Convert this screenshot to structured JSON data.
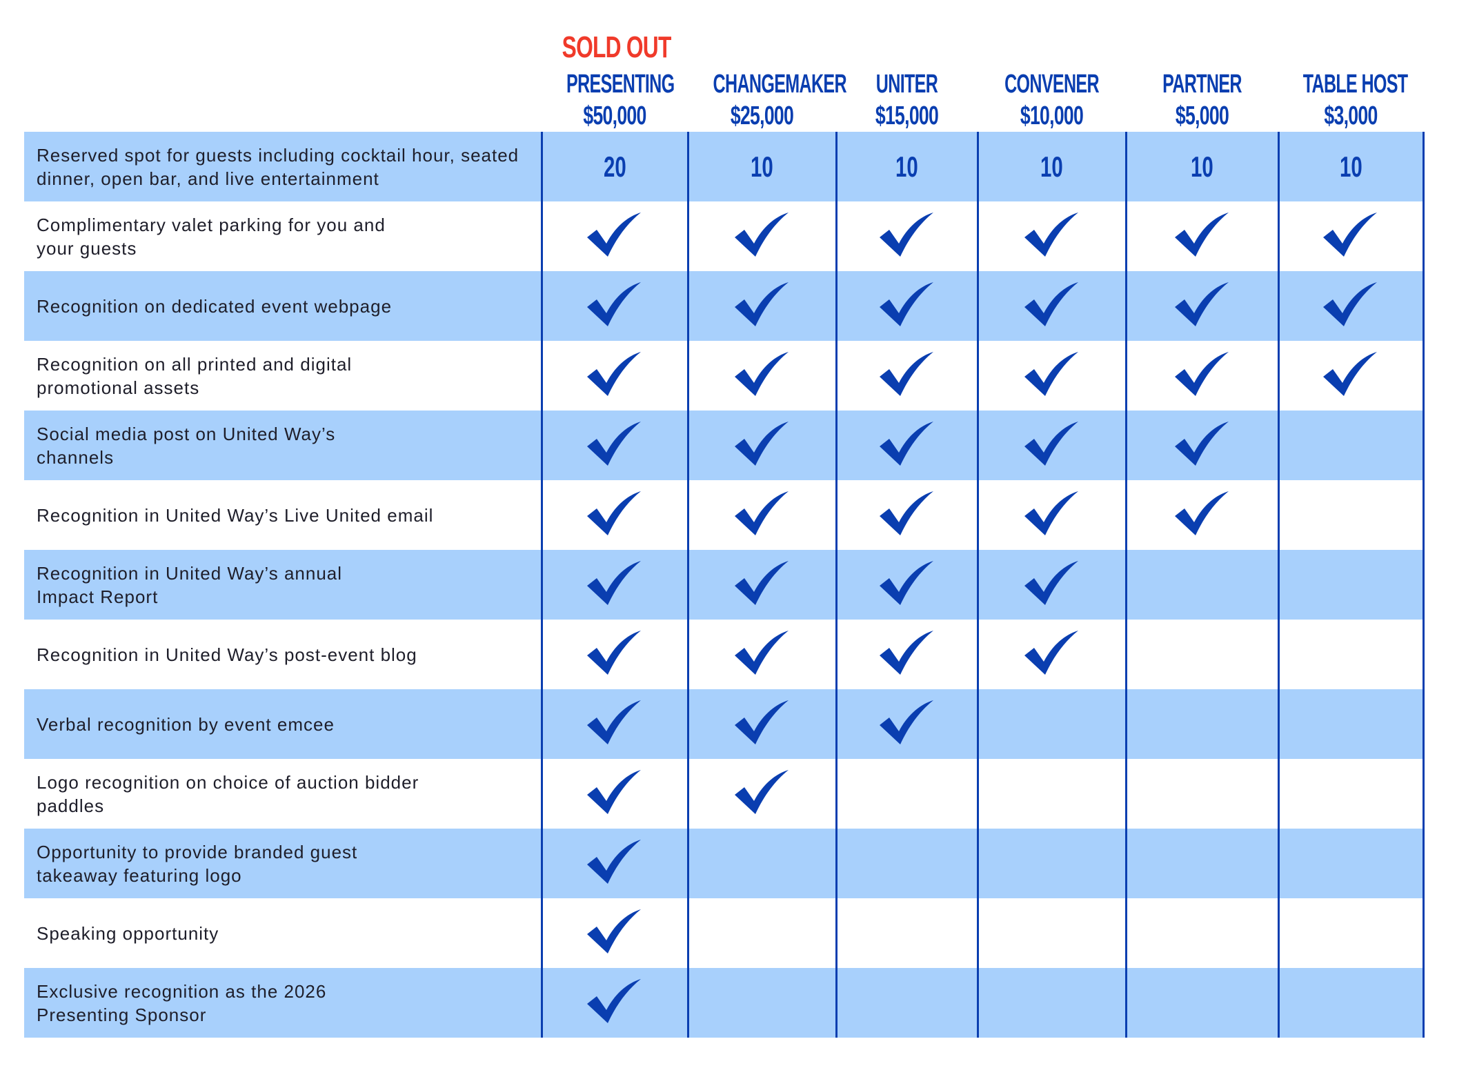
{
  "colors": {
    "accent": "#0a3eb0",
    "row_highlight": "#a8d0fc",
    "sold_out": "#f03a2a"
  },
  "columns": [
    {
      "name": "PRESENTING",
      "price": "$50,000",
      "badge": "SOLD OUT"
    },
    {
      "name": "CHANGEMAKER",
      "price": "$25,000"
    },
    {
      "name": "UNITER",
      "price": "$15,000"
    },
    {
      "name": "CONVENER",
      "price": "$10,000"
    },
    {
      "name": "PARTNER",
      "price": "$5,000"
    },
    {
      "name": "TABLE HOST",
      "price": "$3,000"
    }
  ],
  "rows": [
    {
      "label": "Reserved spot for guests including cocktail hour, seated dinner, open bar, and live entertainment",
      "values": [
        "20",
        "10",
        "10",
        "10",
        "10",
        "10"
      ]
    },
    {
      "label": "Complimentary valet parking for you and your guests",
      "checks": [
        true,
        true,
        true,
        true,
        true,
        true
      ]
    },
    {
      "label": "Recognition on dedicated event webpage",
      "checks": [
        true,
        true,
        true,
        true,
        true,
        true
      ]
    },
    {
      "label": "Recognition on all printed and digital promotional assets",
      "checks": [
        true,
        true,
        true,
        true,
        true,
        true
      ]
    },
    {
      "label": "Social media post on United Way’s channels",
      "checks": [
        true,
        true,
        true,
        true,
        true,
        false
      ]
    },
    {
      "label": "Recognition in United Way’s Live United email",
      "checks": [
        true,
        true,
        true,
        true,
        true,
        false
      ]
    },
    {
      "label": "Recognition in United Way’s annual Impact Report",
      "checks": [
        true,
        true,
        true,
        true,
        false,
        false
      ]
    },
    {
      "label": "Recognition in United Way’s post-event blog",
      "checks": [
        true,
        true,
        true,
        true,
        false,
        false
      ]
    },
    {
      "label": "Verbal recognition by event emcee",
      "checks": [
        true,
        true,
        true,
        false,
        false,
        false
      ]
    },
    {
      "label": "Logo recognition on choice of auction bidder paddles",
      "checks": [
        true,
        true,
        false,
        false,
        false,
        false
      ]
    },
    {
      "label": "Opportunity to provide branded guest takeaway featuring logo",
      "checks": [
        true,
        false,
        false,
        false,
        false,
        false
      ]
    },
    {
      "label": "Speaking opportunity",
      "checks": [
        true,
        false,
        false,
        false,
        false,
        false
      ]
    },
    {
      "label": "Exclusive recognition as the 2026 Presenting Sponsor",
      "checks": [
        true,
        false,
        false,
        false,
        false,
        false
      ]
    }
  ]
}
